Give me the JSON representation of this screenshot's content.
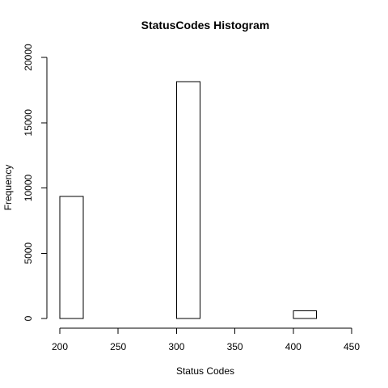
{
  "chart_data": {
    "type": "bar",
    "title": "StatusCodes Histogram",
    "xlabel": "Status Codes",
    "ylabel": "Frequency",
    "xlim": [
      200,
      450
    ],
    "ylim": [
      0,
      20000
    ],
    "xticks": [
      200,
      250,
      300,
      350,
      400,
      450
    ],
    "yticks": [
      0,
      5000,
      10000,
      15000,
      20000
    ],
    "bin_width": 20,
    "bins": [
      {
        "start": 200,
        "end": 220,
        "value": 9350
      },
      {
        "start": 220,
        "end": 240,
        "value": 0
      },
      {
        "start": 240,
        "end": 260,
        "value": 0
      },
      {
        "start": 260,
        "end": 280,
        "value": 0
      },
      {
        "start": 280,
        "end": 300,
        "value": 0
      },
      {
        "start": 300,
        "end": 320,
        "value": 18150
      },
      {
        "start": 320,
        "end": 340,
        "value": 0
      },
      {
        "start": 340,
        "end": 360,
        "value": 0
      },
      {
        "start": 360,
        "end": 380,
        "value": 0
      },
      {
        "start": 380,
        "end": 400,
        "value": 0
      },
      {
        "start": 400,
        "end": 420,
        "value": 600
      },
      {
        "start": 420,
        "end": 440,
        "value": 0
      }
    ],
    "grid": false,
    "legend": "none"
  }
}
